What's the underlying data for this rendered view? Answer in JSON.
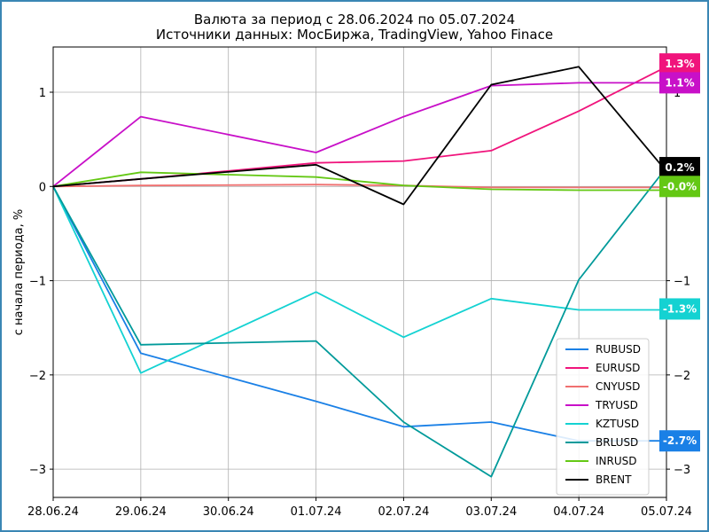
{
  "chart_data": {
    "type": "line",
    "title": [
      "Валюта за период с 28.06.2024 по 05.07.2024",
      "Источники данных: МосБиржа, TradingView, Yahoo Finace"
    ],
    "ylabel": "с начала периода, %",
    "xlabel": "",
    "categories": [
      "28.06.24",
      "29.06.24",
      "30.06.24",
      "01.07.24",
      "02.07.24",
      "03.07.24",
      "04.07.24",
      "05.07.24"
    ],
    "yticks": [
      1,
      0,
      -1,
      -2,
      -3
    ],
    "ytick_labels": [
      "1",
      "0",
      "−1",
      "−2",
      "−3"
    ],
    "ylim": [
      -3.3,
      1.48
    ],
    "grid": true,
    "legend_position": "bottom-right",
    "series": [
      {
        "name": "RUBUSD",
        "color": "#1a80e6",
        "x": [
          0,
          1,
          3,
          4,
          5,
          6,
          7
        ],
        "values": [
          0,
          -1.77,
          -2.28,
          -2.55,
          -2.5,
          -2.7,
          -2.7
        ]
      },
      {
        "name": "EURUSD",
        "color": "#f0147c",
        "x": [
          0,
          1,
          3,
          4,
          5,
          6,
          7
        ],
        "values": [
          0,
          0.08,
          0.25,
          0.27,
          0.38,
          0.8,
          1.27
        ]
      },
      {
        "name": "CNYUSD",
        "color": "#f07070",
        "x": [
          0,
          1,
          3,
          4,
          5,
          6,
          7
        ],
        "values": [
          0,
          0.01,
          0.02,
          0.01,
          -0.01,
          -0.01,
          -0.01
        ]
      },
      {
        "name": "TRYUSD",
        "color": "#c810c8",
        "x": [
          0,
          1,
          3,
          4,
          5,
          6,
          7
        ],
        "values": [
          0,
          0.74,
          0.36,
          0.74,
          1.07,
          1.1,
          1.1
        ]
      },
      {
        "name": "KZTUSD",
        "color": "#14d2d2",
        "x": [
          0,
          1,
          3,
          4,
          5,
          6,
          7
        ],
        "values": [
          0,
          -1.98,
          -1.12,
          -1.6,
          -1.19,
          -1.31,
          -1.31
        ]
      },
      {
        "name": "BRLUSD",
        "color": "#009a9a",
        "x": [
          0,
          1,
          3,
          4,
          5,
          6,
          7
        ],
        "values": [
          0,
          -1.68,
          -1.64,
          -2.5,
          -3.08,
          -0.99,
          0.2
        ]
      },
      {
        "name": "INRUSD",
        "color": "#64c814",
        "x": [
          0,
          1,
          3,
          4,
          5,
          6,
          7
        ],
        "values": [
          0,
          0.15,
          0.1,
          0.01,
          -0.03,
          -0.04,
          -0.04
        ]
      },
      {
        "name": "BRENT",
        "color": "#000000",
        "x": [
          0,
          1,
          3,
          4,
          5,
          6,
          7
        ],
        "values": [
          0,
          0.08,
          0.23,
          -0.19,
          1.08,
          1.27,
          0.16
        ]
      }
    ],
    "end_labels": [
      {
        "text": "1.3%",
        "value": 1.3,
        "color": "#f0147c"
      },
      {
        "text": "1.1%",
        "value": 1.1,
        "color": "#c810c8"
      },
      {
        "text": "0.2%",
        "value": 0.2,
        "color": "#000000"
      },
      {
        "text": "-0.0%",
        "value": -0.0,
        "color": "#64c814"
      },
      {
        "text": "-1.3%",
        "value": -1.3,
        "color": "#14d2d2"
      },
      {
        "text": "-2.7%",
        "value": -2.7,
        "color": "#1a80e6"
      }
    ]
  }
}
